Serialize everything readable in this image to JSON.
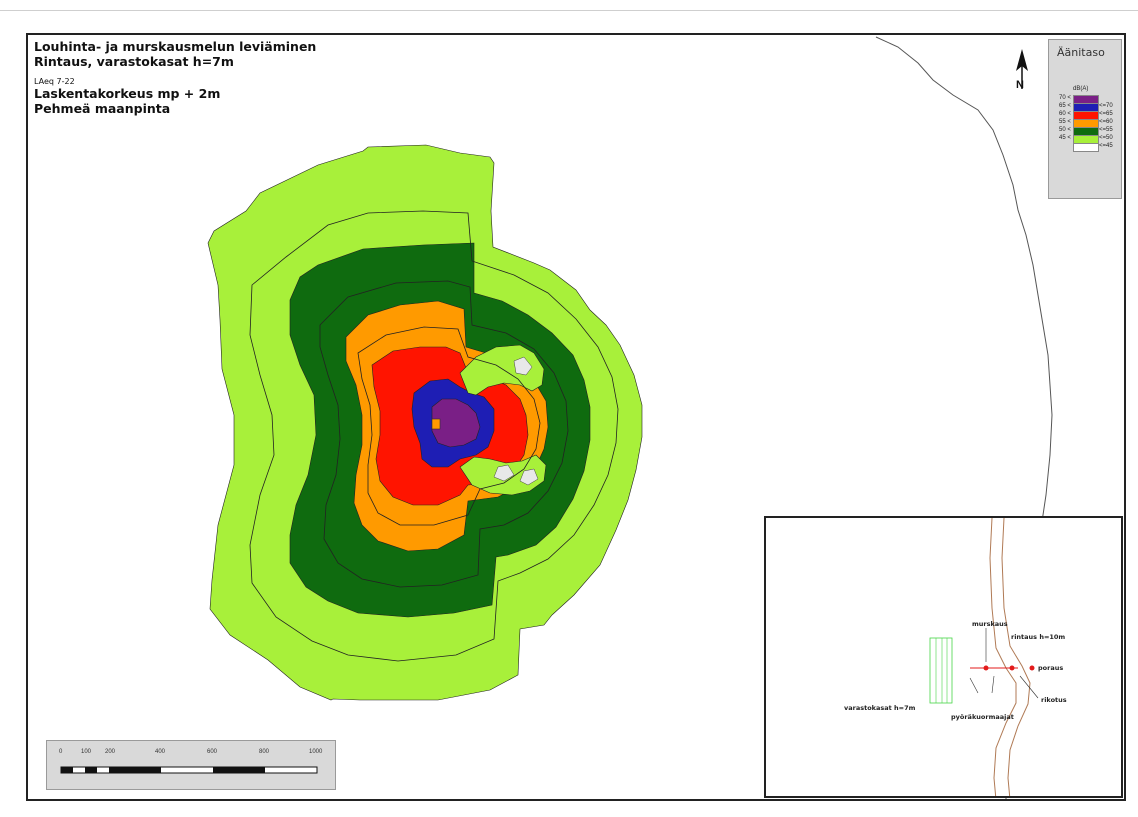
{
  "title": {
    "line1": "Louhinta- ja murskausmelun leviäminen",
    "line2": "Rintaus, varastokasat h=7m",
    "laeq": "LAeq 7-22",
    "line3": "Laskentakorkeus mp + 2m",
    "line4": "Pehmeä maanpinta"
  },
  "legend": {
    "title": "Äänitaso",
    "unit": "dB(A)",
    "items": [
      {
        "lo": "70 <",
        "hi": "",
        "color": "#7a1f86"
      },
      {
        "lo": "65 <",
        "hi": "<=70",
        "color": "#1e1eb4"
      },
      {
        "lo": "60 <",
        "hi": "<=65",
        "color": "#ff1400"
      },
      {
        "lo": "55 <",
        "hi": "<=60",
        "color": "#ff9a00"
      },
      {
        "lo": "50 <",
        "hi": "<=55",
        "color": "#0f6b0f"
      },
      {
        "lo": "45 <",
        "hi": "<=50",
        "color": "#a8f03a"
      },
      {
        "lo": "",
        "hi": "<=45",
        "color": "#ffffff"
      }
    ]
  },
  "north": {
    "label": "N"
  },
  "scalebar": {
    "ticks": [
      "0",
      "100",
      "200",
      "400",
      "600",
      "800",
      "1000"
    ]
  },
  "inset": {
    "labels": {
      "murskaus": "murskaus",
      "rintaus": "rintaus h=10m",
      "poraus": "poraus",
      "rikotus": "rikotus",
      "varastokasat": "varastokasat h=7m",
      "pyorakuormaajat": "pyöräkuormaajat"
    }
  },
  "colors": {
    "level_70": "#7a1f86",
    "level_65": "#1e1eb4",
    "level_60": "#ff1400",
    "level_55": "#ff9a00",
    "level_50": "#0f6b0f",
    "level_45": "#a8f03a",
    "inset_marker": "#e31b1b",
    "road": "#b07a55"
  }
}
